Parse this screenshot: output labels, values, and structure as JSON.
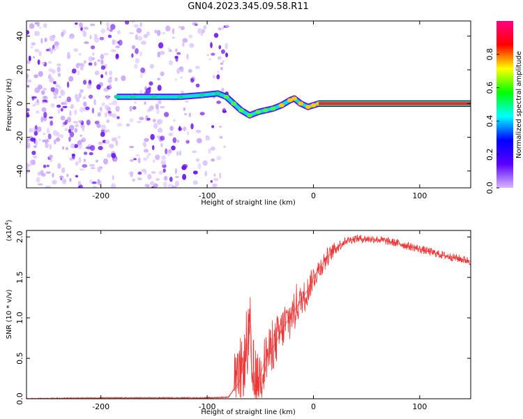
{
  "title": "GN04.2023.345.09.58.R11",
  "chart_data": [
    {
      "type": "heatmap",
      "xlabel": "Height of straight line (km)",
      "ylabel": "Frequency (Hz)",
      "xlim": [
        -270,
        148
      ],
      "ylim": [
        -50,
        49
      ],
      "xticks": [
        -200,
        -100,
        0,
        100
      ],
      "yticks": [
        -40,
        -20,
        0,
        20,
        40
      ],
      "colorbar": {
        "label": "Normalized spectral amplitude",
        "range": [
          0,
          1
        ],
        "ticks": [
          0.0,
          0.2,
          0.4,
          0.6,
          0.8
        ],
        "colors": [
          "#d8b8ff",
          "#5a00ff",
          "#0000ff",
          "#00ffff",
          "#00ff00",
          "#ffff00",
          "#ff0000",
          "#ff0080"
        ]
      },
      "ridge": [
        {
          "x": -185,
          "y": 4
        },
        {
          "x": -170,
          "y": 4
        },
        {
          "x": -150,
          "y": 4
        },
        {
          "x": -125,
          "y": 4
        },
        {
          "x": -105,
          "y": 5
        },
        {
          "x": -90,
          "y": 6
        },
        {
          "x": -82,
          "y": 4
        },
        {
          "x": -75,
          "y": 0
        },
        {
          "x": -68,
          "y": -4
        },
        {
          "x": -60,
          "y": -7
        },
        {
          "x": -52,
          "y": -5
        },
        {
          "x": -45,
          "y": -4
        },
        {
          "x": -38,
          "y": -3
        },
        {
          "x": -30,
          "y": -1
        },
        {
          "x": -22,
          "y": 2
        },
        {
          "x": -18,
          "y": 3
        },
        {
          "x": -12,
          "y": 0
        },
        {
          "x": -5,
          "y": -2
        },
        {
          "x": 0,
          "y": -1
        },
        {
          "x": 5,
          "y": 0
        },
        {
          "x": 148,
          "y": 0
        }
      ],
      "noise_region_x": [
        -270,
        -80
      ]
    },
    {
      "type": "line",
      "xlabel": "Height of straight line (km)",
      "ylabel": "SNR (10 * v/v)",
      "y_multiplier": "(x10",
      "y_multiplier_exp": "4",
      "y_multiplier_close": ")",
      "xlim": [
        -270,
        148
      ],
      "ylim": [
        0,
        2.08
      ],
      "xticks": [
        -200,
        -100,
        0,
        100
      ],
      "yticks": [
        0.0,
        0.5,
        1.0,
        1.5,
        2.0
      ],
      "color": "#ee3333",
      "series": [
        {
          "x": [
            -270,
            -200,
            -150,
            -100,
            -80,
            -70,
            -63,
            -60,
            -58,
            -55,
            -50,
            -45,
            -40,
            -35,
            -30,
            -25,
            -20,
            -15,
            -10,
            -5,
            0,
            10,
            20,
            30,
            40,
            60,
            80,
            100,
            120,
            148
          ],
          "values": [
            0.0,
            0.01,
            0.01,
            0.01,
            0.02,
            0.2,
            0.55,
            0.9,
            0.3,
            0.15,
            0.3,
            0.5,
            0.6,
            0.7,
            0.85,
            0.95,
            1.05,
            1.15,
            1.25,
            1.35,
            1.5,
            1.7,
            1.85,
            1.95,
            1.98,
            1.97,
            1.92,
            1.85,
            1.78,
            1.7
          ]
        }
      ]
    }
  ]
}
